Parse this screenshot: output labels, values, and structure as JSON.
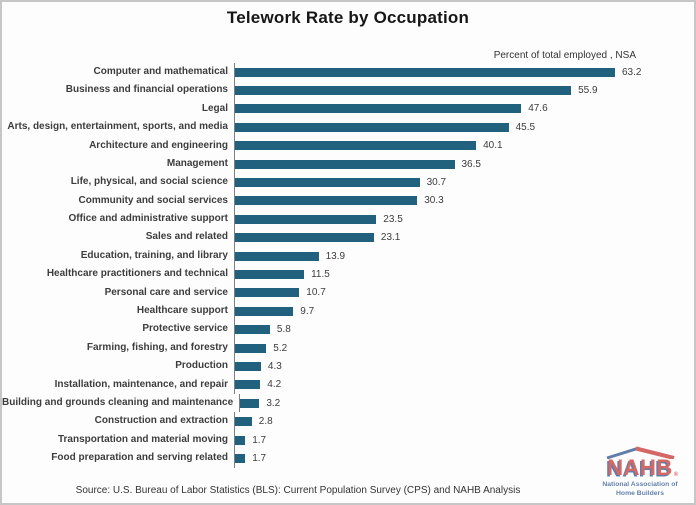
{
  "chart_data": {
    "type": "bar",
    "orientation": "horizontal",
    "title": "Telework Rate by Occupation",
    "note": "Percent of total employed , NSA",
    "categories": [
      "Computer and mathematical",
      "Business and financial operations",
      "Legal",
      "Arts, design, entertainment, sports, and media",
      "Architecture and engineering",
      "Management",
      "Life, physical, and social science",
      "Community and social services",
      "Office and administrative support",
      "Sales and related",
      "Education, training, and library",
      "Healthcare practitioners and technical",
      "Personal care and service",
      "Healthcare support",
      "Protective service",
      "Farming, fishing, and forestry",
      "Production",
      "Installation, maintenance, and repair",
      "Building and grounds cleaning and maintenance",
      "Construction and extraction",
      "Transportation and material moving",
      "Food preparation and serving related"
    ],
    "values": [
      63.2,
      55.9,
      47.6,
      45.5,
      40.1,
      36.5,
      30.7,
      30.3,
      23.5,
      23.1,
      13.9,
      11.5,
      10.7,
      9.7,
      5.8,
      5.2,
      4.3,
      4.2,
      3.2,
      2.8,
      1.7,
      1.7
    ],
    "xlabel": "",
    "ylabel": "",
    "xlim": [
      0,
      65
    ],
    "grid": false,
    "legend": "none",
    "value_labels": true,
    "bar_color": "#21617D"
  },
  "footer": {
    "source": "Source: U.S. Bureau of Labor Statistics (BLS): Current Population Survey (CPS) and NAHB Analysis"
  },
  "logo": {
    "name": "NAHB",
    "reg_mark": "®",
    "subtitle": "National Association of Home Builders",
    "name_color": "#CE4F4D",
    "subtitle_color": "#4A6D9E"
  }
}
